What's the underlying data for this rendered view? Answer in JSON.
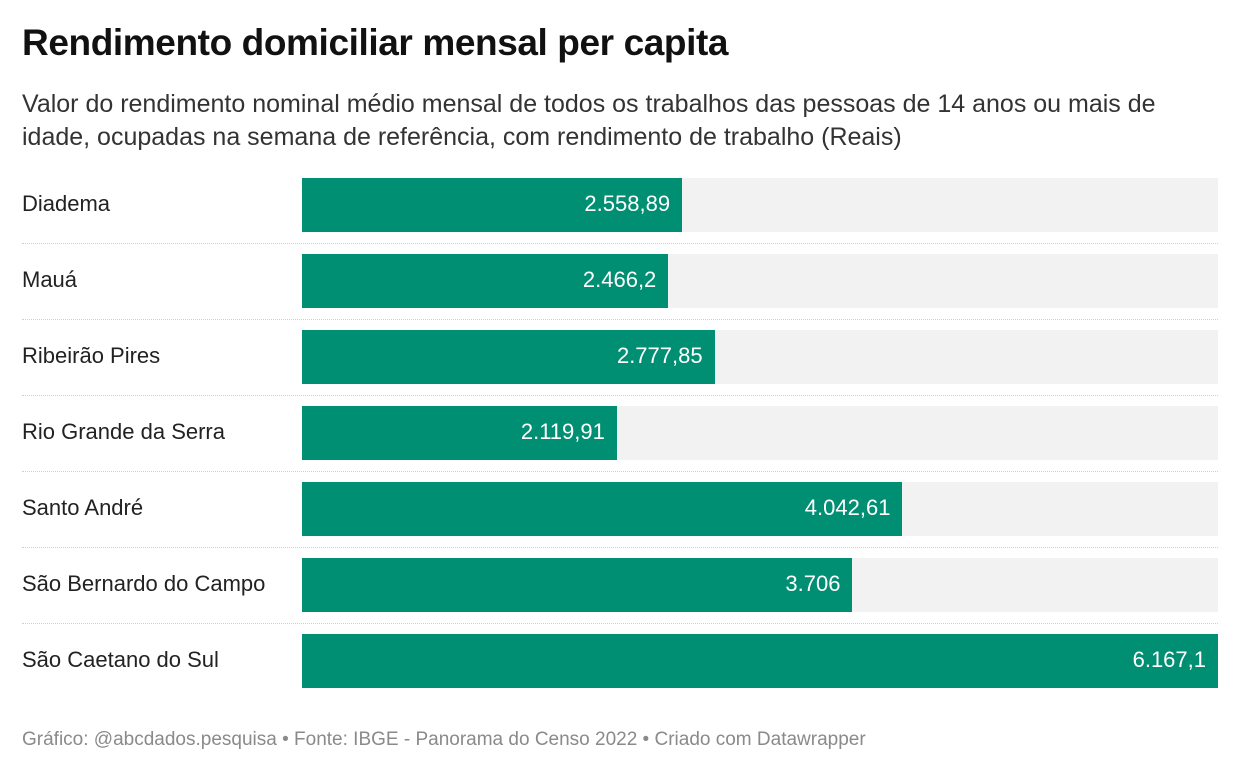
{
  "chart_data": {
    "type": "bar",
    "orientation": "horizontal",
    "title": "Rendimento domiciliar mensal per capita",
    "subtitle": "Valor do rendimento nominal médio mensal de todos os trabalhos das pessoas de 14 anos ou mais de idade, ocupadas na semana de referência, com rendimento de trabalho (Reais)",
    "categories": [
      "Diadema",
      "Mauá",
      "Ribeirão Pires",
      "Rio Grande da Serra",
      "Santo André",
      "São Bernardo do Campo",
      "São Caetano do Sul"
    ],
    "values": [
      2558.89,
      2466.2,
      2777.85,
      2119.91,
      4042.61,
      3706,
      6167.1
    ],
    "value_labels": [
      "2.558,89",
      "2.466,2",
      "2.777,85",
      "2.119,91",
      "4.042,61",
      "3.706",
      "6.167,1"
    ],
    "xlim": [
      0,
      6167.1
    ],
    "xlabel": "",
    "ylabel": "",
    "grid": false,
    "legend": "none",
    "colors": {
      "bar": "#008f73",
      "track": "#f2f2f2",
      "value_text": "#ffffff"
    }
  },
  "footer": {
    "text": "Gráfico: @abcdados.pesquisa • Fonte: IBGE - Panorama do Censo 2022 • Criado com Datawrapper"
  }
}
